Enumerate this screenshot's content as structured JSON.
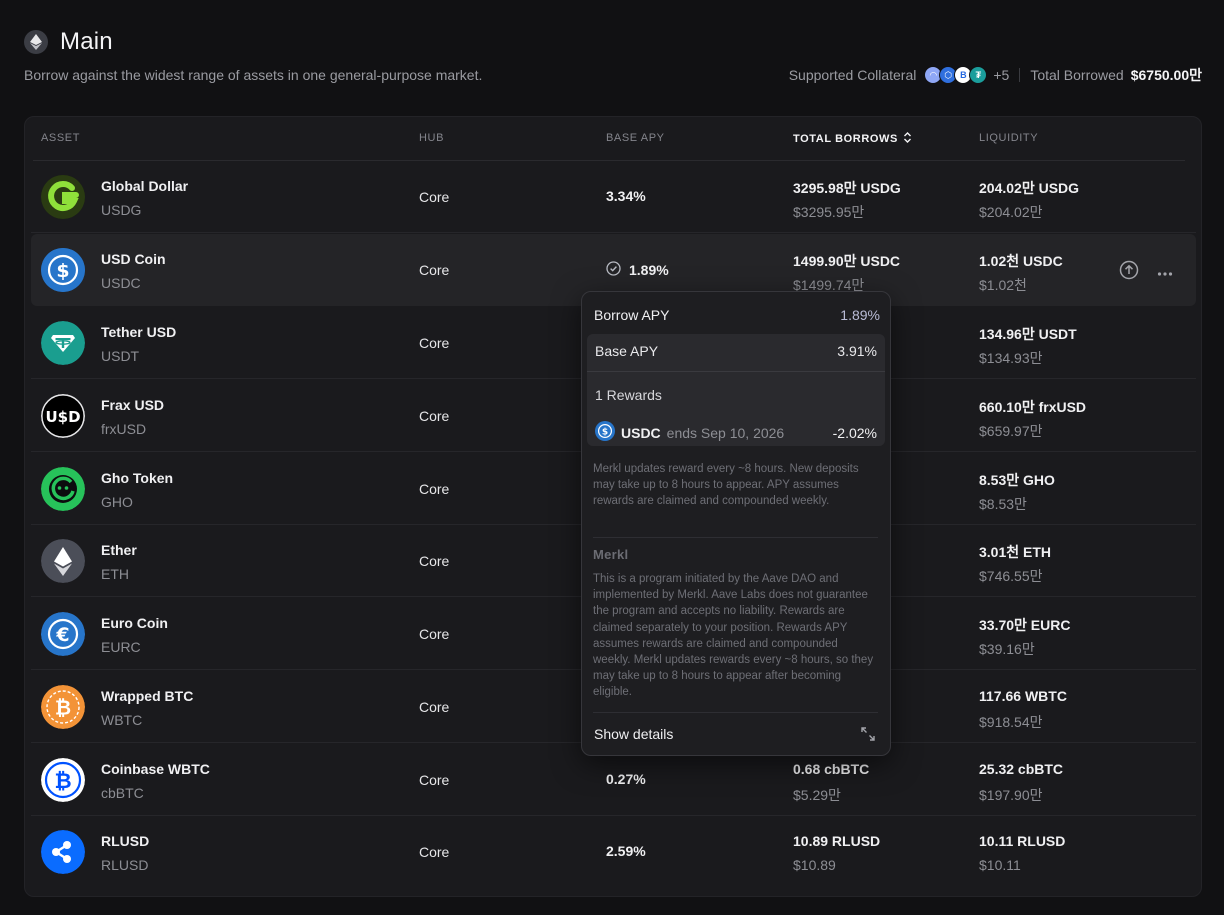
{
  "header": {
    "title": "Main",
    "subtitle": "Borrow against the widest range of assets in one general-purpose market.",
    "supported_collateral_label": "Supported Collateral",
    "collateral_more": "+5",
    "total_borrowed_label": "Total Borrowed",
    "total_borrowed_value": "$6750.00만"
  },
  "table": {
    "headers": {
      "asset": "ASSET",
      "hub": "HUB",
      "base_apy": "BASE APY",
      "total_borrows": "TOTAL BORROWS",
      "liquidity": "LIQUIDITY"
    },
    "rows": [
      {
        "name": "Global Dollar",
        "symbol": "USDG",
        "hub": "Core",
        "apy": "3.34%",
        "borrows": "3295.98만 USDG",
        "borrows_usd": "$3295.95만",
        "liquidity": "204.02만 USDG",
        "liquidity_usd": "$204.02만",
        "icon": "global-dollar-icon",
        "color": "#7ed957"
      },
      {
        "name": "USD Coin",
        "symbol": "USDC",
        "hub": "Core",
        "apy": "1.89%",
        "borrows": "1499.90만 USDC",
        "borrows_usd": "$1499.74만",
        "liquidity": "1.02천 USDC",
        "liquidity_usd": "$1.02천",
        "icon": "usdc-icon",
        "color": "#2775ca"
      },
      {
        "name": "Tether USD",
        "symbol": "USDT",
        "hub": "Core",
        "apy": "",
        "borrows": "",
        "borrows_usd": "",
        "liquidity": "134.96만 USDT",
        "liquidity_usd": "$134.93만",
        "icon": "tether-icon",
        "color": "#26a17b"
      },
      {
        "name": "Frax USD",
        "symbol": "frxUSD",
        "hub": "Core",
        "apy": "",
        "borrows": "",
        "borrows_usd": "",
        "liquidity": "660.10만 frxUSD",
        "liquidity_usd": "$659.97만",
        "icon": "frax-usd-icon",
        "color": "#000000"
      },
      {
        "name": "Gho Token",
        "symbol": "GHO",
        "hub": "Core",
        "apy": "",
        "borrows": "",
        "borrows_usd": "",
        "liquidity": "8.53만 GHO",
        "liquidity_usd": "$8.53만",
        "icon": "gho-icon",
        "color": "#2ebd59"
      },
      {
        "name": "Ether",
        "symbol": "ETH",
        "hub": "Core",
        "apy": "",
        "borrows": "",
        "borrows_usd": "",
        "liquidity": "3.01천 ETH",
        "liquidity_usd": "$746.55만",
        "icon": "ether-icon",
        "color": "#4a4d56"
      },
      {
        "name": "Euro Coin",
        "symbol": "EURC",
        "hub": "Core",
        "apy": "",
        "borrows": "",
        "borrows_usd": "",
        "liquidity": "33.70만 EURC",
        "liquidity_usd": "$39.16만",
        "icon": "euro-coin-icon",
        "color": "#2775ca"
      },
      {
        "name": "Wrapped BTC",
        "symbol": "WBTC",
        "hub": "Core",
        "apy": "",
        "borrows": "",
        "borrows_usd": "",
        "liquidity": "117.66 WBTC",
        "liquidity_usd": "$918.54만",
        "icon": "wbtc-icon",
        "color": "#f09242"
      },
      {
        "name": "Coinbase WBTC",
        "symbol": "cbBTC",
        "hub": "Core",
        "apy": "0.27%",
        "borrows": "0.68 cbBTC",
        "borrows_usd": "$5.29만",
        "liquidity": "25.32 cbBTC",
        "liquidity_usd": "$197.90만",
        "icon": "cbbtc-icon",
        "color": "#0052ff"
      },
      {
        "name": "RLUSD",
        "symbol": "RLUSD",
        "hub": "Core",
        "apy": "2.59%",
        "borrows": "10.89 RLUSD",
        "borrows_usd": "$10.89",
        "liquidity": "10.11 RLUSD",
        "liquidity_usd": "$10.11",
        "icon": "rlusd-icon",
        "color": "#0a6cff"
      }
    ]
  },
  "tooltip": {
    "borrow_apy_label": "Borrow APY",
    "borrow_apy_value": "1.89%",
    "base_apy_label": "Base APY",
    "base_apy_value": "3.91%",
    "rewards_label": "1 Rewards",
    "reward_token": "USDC",
    "reward_ends": "ends Sep 10, 2026",
    "reward_value": "-2.02%",
    "note": "Merkl updates reward every ~8 hours. New deposits may take up to 8 hours to appear. APY assumes rewards are claimed and compounded weekly.",
    "merkl_logo": "Merkl",
    "disclaimer": "This is a program initiated by the Aave DAO and implemented by Merkl. Aave Labs does not guarantee the program and accepts no liability. Rewards are claimed separately to your position. Rewards APY assumes rewards are claimed and compounded weekly. Merkl updates rewards every ~8 hours, so they may take up to 8 hours to appear after becoming eligible.",
    "show_details": "Show details"
  }
}
